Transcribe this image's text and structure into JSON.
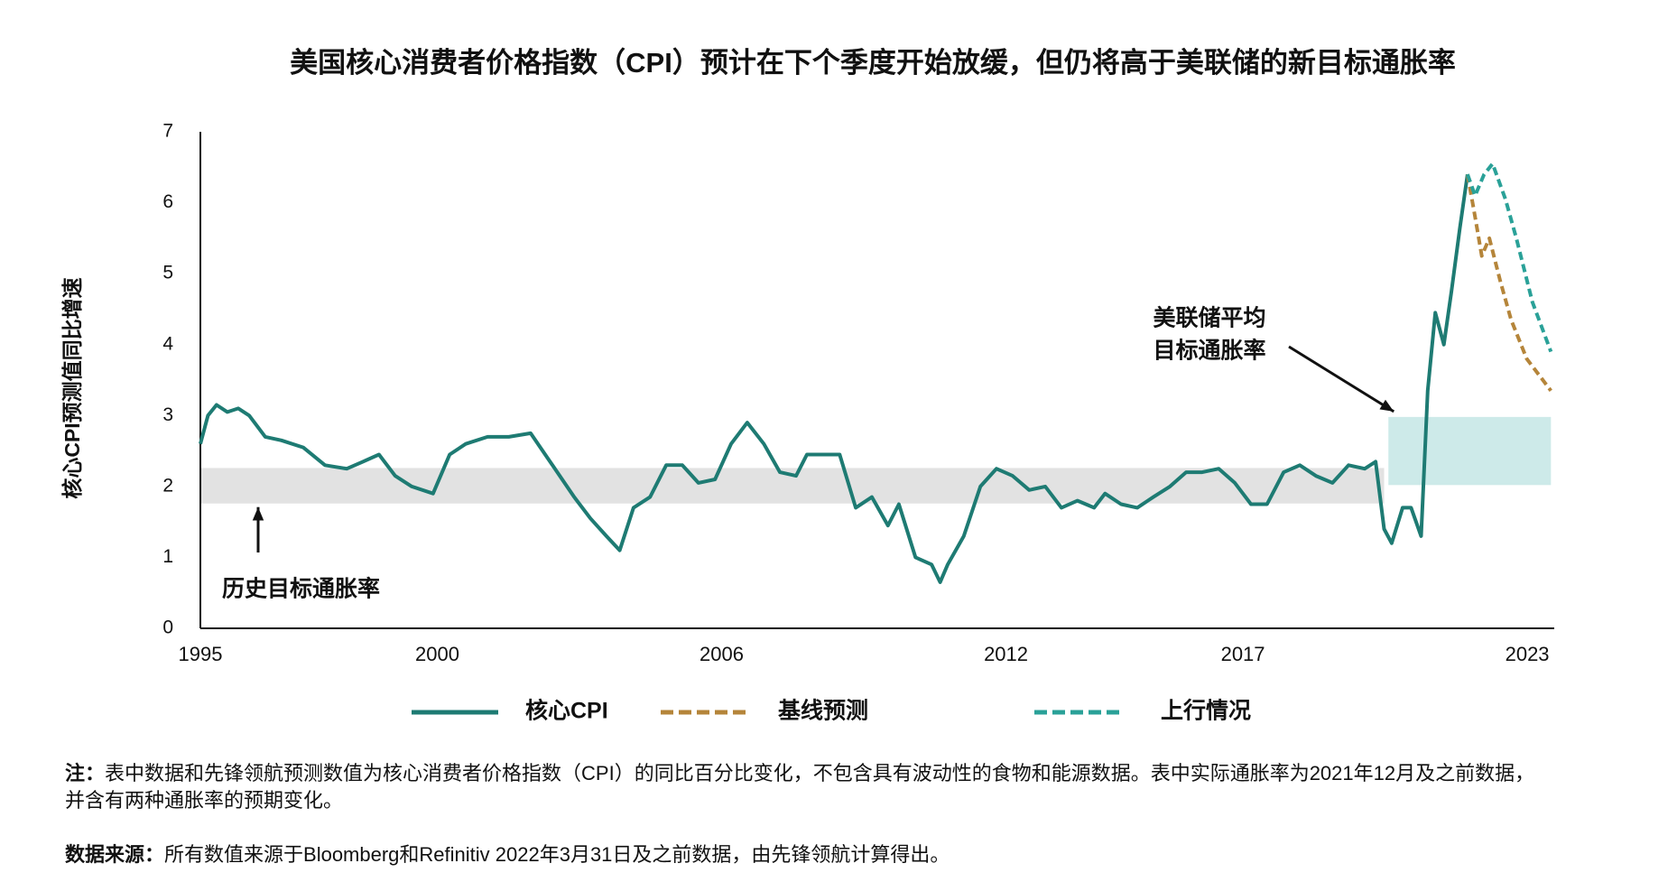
{
  "chart_data": {
    "type": "line",
    "title": "美国核心消费者价格指数（CPI）预计在下个季度开始放缓，但仍将高于美联储的新目标通胀率",
    "y_label": "核心CPI预测值同比增速",
    "xlim": [
      1995,
      2023.57
    ],
    "xticks": [
      1995,
      2000,
      2006,
      2012,
      2017,
      2023
    ],
    "ylim": [
      0,
      7
    ],
    "yticks": [
      0,
      1,
      2,
      3,
      4,
      5,
      6,
      7
    ],
    "series": [
      {
        "name": "核心CPI",
        "color": "#1e7b73",
        "style": "solid",
        "x": [
          1995.0,
          1995.16,
          1995.34,
          1995.57,
          1995.8,
          1996.03,
          1996.37,
          1996.71,
          1997.17,
          1997.63,
          1998.09,
          1998.43,
          1998.77,
          1999.11,
          1999.46,
          1999.91,
          2000.26,
          2000.6,
          2001.06,
          2001.51,
          2001.97,
          2002.43,
          2002.89,
          2003.23,
          2003.57,
          2003.85,
          2004.14,
          2004.49,
          2004.83,
          2005.17,
          2005.51,
          2005.86,
          2006.2,
          2006.54,
          2006.89,
          2007.23,
          2007.57,
          2007.8,
          2008.14,
          2008.49,
          2008.83,
          2009.17,
          2009.51,
          2009.74,
          2010.09,
          2010.43,
          2010.61,
          2010.77,
          2011.11,
          2011.46,
          2011.8,
          2012.14,
          2012.49,
          2012.83,
          2013.17,
          2013.51,
          2013.86,
          2014.09,
          2014.43,
          2014.77,
          2015.11,
          2015.46,
          2015.8,
          2016.14,
          2016.49,
          2016.83,
          2017.17,
          2017.51,
          2017.86,
          2018.2,
          2018.54,
          2018.89,
          2019.23,
          2019.57,
          2019.8,
          2019.98,
          2020.14,
          2020.37,
          2020.55,
          2020.76,
          2020.9,
          2021.06,
          2021.24,
          2021.4,
          2021.58,
          2021.74
        ],
        "values": [
          2.6,
          3.0,
          3.15,
          3.05,
          3.1,
          3.0,
          2.7,
          2.65,
          2.55,
          2.3,
          2.25,
          2.35,
          2.45,
          2.15,
          2.0,
          1.9,
          2.45,
          2.6,
          2.7,
          2.7,
          2.75,
          2.3,
          1.85,
          1.55,
          1.3,
          1.1,
          1.7,
          1.85,
          2.3,
          2.3,
          2.05,
          2.1,
          2.6,
          2.9,
          2.6,
          2.2,
          2.15,
          2.45,
          2.45,
          2.45,
          1.7,
          1.85,
          1.45,
          1.75,
          1.0,
          0.9,
          0.65,
          0.9,
          1.3,
          2.0,
          2.25,
          2.15,
          1.95,
          2.0,
          1.7,
          1.8,
          1.7,
          1.9,
          1.75,
          1.7,
          1.85,
          2.0,
          2.2,
          2.2,
          2.25,
          2.05,
          1.75,
          1.75,
          2.2,
          2.3,
          2.15,
          2.05,
          2.3,
          2.25,
          2.35,
          1.4,
          1.2,
          1.7,
          1.7,
          1.3,
          3.35,
          4.45,
          4.0,
          4.75,
          5.65,
          6.4
        ]
      },
      {
        "name": "基线预测",
        "color": "#b5853a",
        "style": "dashed",
        "x": [
          2021.74,
          2021.9,
          2022.04,
          2022.2,
          2022.43,
          2022.66,
          2022.99,
          2023.5
        ],
        "values": [
          6.4,
          5.8,
          5.25,
          5.5,
          4.9,
          4.35,
          3.8,
          3.35
        ]
      },
      {
        "name": "上行情况",
        "color": "#2aa198",
        "style": "dashed",
        "x": [
          2021.74,
          2021.9,
          2022.09,
          2022.27,
          2022.54,
          2022.77,
          2023.11,
          2023.5
        ],
        "values": [
          6.4,
          6.1,
          6.4,
          6.55,
          6.05,
          5.5,
          4.6,
          3.9
        ]
      }
    ],
    "bands": [
      {
        "x": [
          1995,
          2019.98
        ],
        "y": [
          1.76,
          2.26
        ],
        "color": "#e2e2e2"
      },
      {
        "x": [
          2020.07,
          2023.5
        ],
        "y": [
          2.02,
          2.98
        ],
        "color": "#cdeae9"
      }
    ],
    "annotations": [
      {
        "lines": [
          "历史目标通胀率"
        ]
      },
      {
        "lines": [
          "美联储平均",
          "目标通胀率"
        ]
      }
    ],
    "note": {
      "label": "注：",
      "text": "表中数据和先锋领航预测数值为核心消费者价格指数（CPI）的同比百分比变化，不包含具有波动性的食物和能源数据。表中实际通胀率为2021年12月及之前数据，并含有两种通胀率的预期变化。"
    },
    "source": {
      "label": "数据来源：",
      "text": "所有数值来源于Bloomberg和Refinitiv 2022年3月31日及之前数据，由先锋领航计算得出。"
    }
  }
}
